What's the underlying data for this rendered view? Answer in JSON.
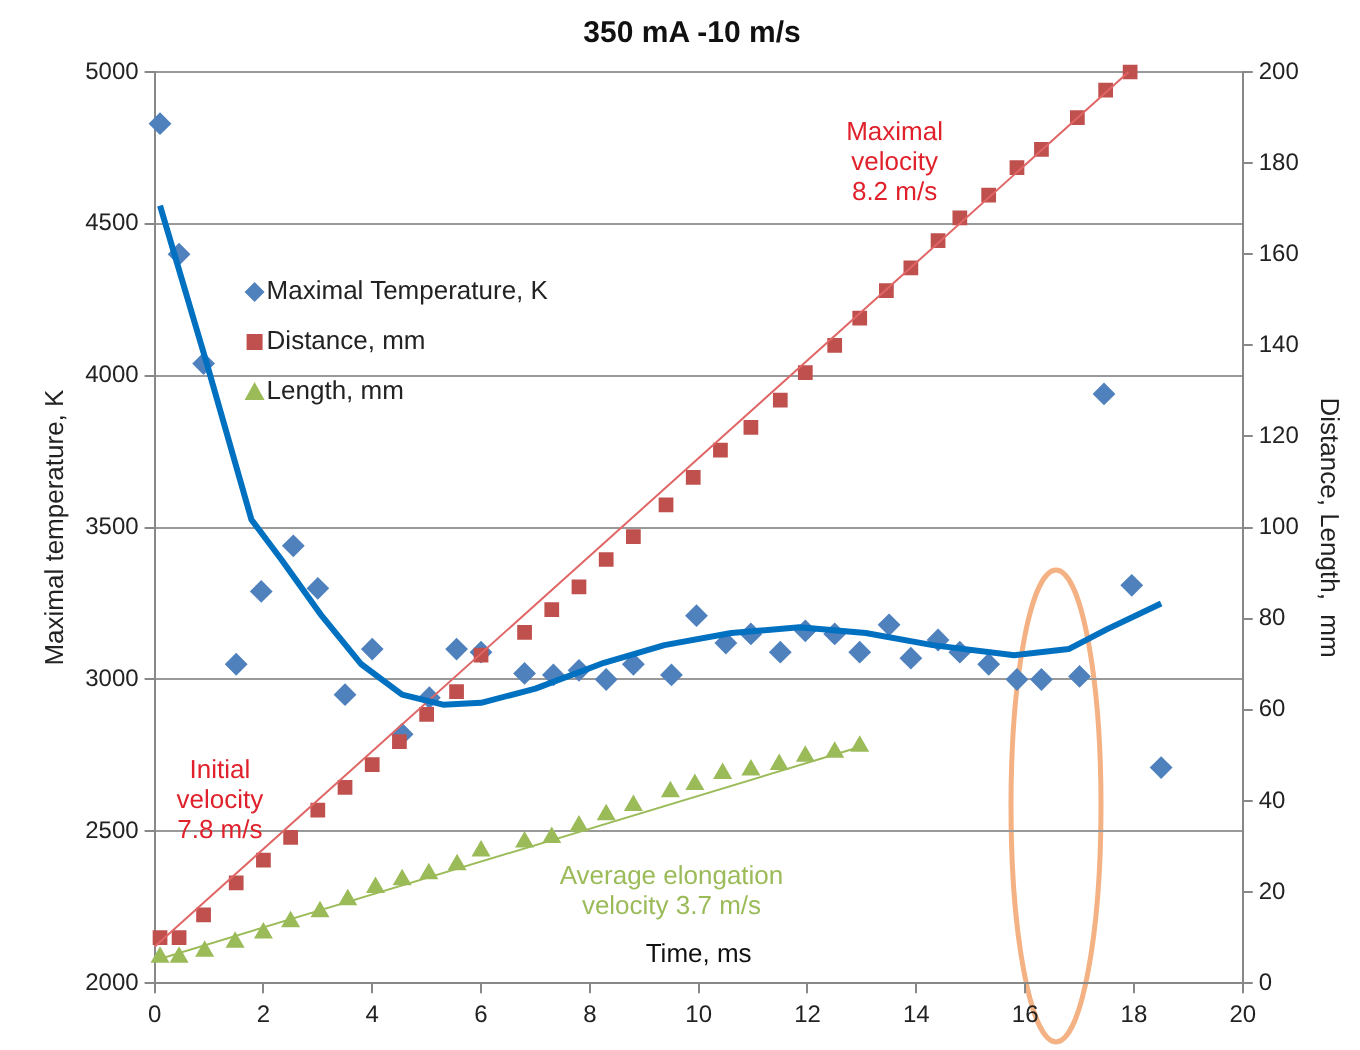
{
  "chart_data": {
    "type": "scatter",
    "title": "350 mA -10 m/s",
    "xlabel": "Time, ms",
    "ylabel": "Maximal temperature, K",
    "y2label": "Distance, Length,  mm",
    "xlim": [
      0,
      20
    ],
    "xticks": [
      0,
      2,
      4,
      6,
      8,
      10,
      12,
      14,
      16,
      18,
      20
    ],
    "ylim": [
      2000,
      5000
    ],
    "yticks": [
      2000,
      2500,
      3000,
      3500,
      4000,
      4500,
      5000
    ],
    "y2lim": [
      0,
      200
    ],
    "y2ticks": [
      0,
      20,
      40,
      60,
      80,
      100,
      120,
      140,
      160,
      180,
      200
    ],
    "grid": "y",
    "legend": "top left",
    "annotations": [
      "Maximal\nvelocity\n8.2 m/s",
      "Initial\nvelocity\n7.8 m/s",
      "Average elongation\nvelocity 3.7 m/s"
    ],
    "series": [
      {
        "name": "Maximal Temperature, K",
        "marker": "diamond",
        "color": "#4f81bd",
        "x": [
          0.1,
          0.45,
          0.9,
          1.5,
          1.96,
          2.55,
          3.0,
          3.5,
          4.0,
          4.55,
          5.05,
          5.55,
          6.0,
          6.8,
          7.33,
          7.8,
          8.3,
          8.8,
          9.5,
          9.96,
          10.5,
          10.96,
          11.5,
          11.96,
          12.5,
          12.96,
          13.5,
          13.9,
          14.4,
          14.8,
          15.33,
          15.85,
          16.3,
          17.0,
          17.45,
          17.96,
          18.5
        ],
        "values": [
          4830,
          4400,
          4040,
          3050,
          3290,
          3440,
          3300,
          2950,
          3100,
          2820,
          2940,
          3100,
          3090,
          3020,
          3015,
          3030,
          3000,
          3050,
          3015,
          3210,
          3120,
          3150,
          3090,
          3160,
          3150,
          3090,
          3180,
          3070,
          3130,
          3090,
          3050,
          3000,
          3000,
          3010,
          3940,
          3310,
          2710
        ]
      },
      {
        "name": "Distance, mm",
        "marker": "square",
        "axis": "y2",
        "color": "#c0504d",
        "x": [
          0.1,
          0.45,
          0.9,
          1.5,
          2.0,
          2.5,
          3.0,
          3.5,
          4.0,
          4.5,
          5.0,
          5.55,
          6.0,
          6.8,
          7.3,
          7.8,
          8.3,
          8.8,
          9.4,
          9.9,
          10.4,
          10.96,
          11.5,
          11.96,
          12.5,
          12.96,
          13.45,
          13.9,
          14.4,
          14.8,
          15.33,
          15.85,
          16.3,
          16.96,
          17.48,
          17.93
        ],
        "values": [
          10,
          10,
          15,
          22,
          27,
          32,
          38,
          43,
          48,
          53,
          59,
          64,
          72,
          77,
          82,
          87,
          93,
          98,
          105,
          111,
          117,
          122,
          128,
          134,
          140,
          146,
          152,
          157,
          163,
          168,
          173,
          179,
          183,
          190,
          196,
          200
        ]
      },
      {
        "name": "Length, mm",
        "marker": "triangle",
        "axis": "y2",
        "color": "#9bbb59",
        "x": [
          0.1,
          0.45,
          0.92,
          1.48,
          2.0,
          2.5,
          3.04,
          3.55,
          4.06,
          4.55,
          5.04,
          5.56,
          6.0,
          6.8,
          7.3,
          7.8,
          8.3,
          8.8,
          9.48,
          9.93,
          10.44,
          10.96,
          11.48,
          11.96,
          12.5,
          12.96
        ],
        "values": [
          5.7,
          5.7,
          7,
          9,
          11,
          13.5,
          15.7,
          18.3,
          21,
          22.7,
          24,
          26,
          29,
          31,
          32,
          34.5,
          37,
          39,
          42,
          43.6,
          46,
          46.8,
          48,
          49.8,
          50.7,
          52
        ]
      },
      {
        "type": "line",
        "marker": "none",
        "color": "#0070c0",
        "x": [
          0.1,
          0.96,
          1.78,
          2.33,
          3.07,
          3.8,
          4.55,
          5.3,
          6.0,
          7.0,
          8.26,
          9.37,
          10.6,
          11.85,
          13.07,
          14.3,
          15.8,
          16.8,
          17.5,
          18.5
        ],
        "values": [
          4560,
          4040,
          3526,
          3395,
          3210,
          3050,
          2950,
          2917,
          2923,
          2970,
          3055,
          3113,
          3153,
          3172,
          3153,
          3113,
          3080,
          3100,
          3165,
          3250
        ]
      },
      {
        "type": "line",
        "marker": "none",
        "axis": "y2",
        "color": "#e06666",
        "x": [
          0,
          17.9
        ],
        "values": [
          8,
          200
        ]
      },
      {
        "type": "line",
        "marker": "none",
        "axis": "y2",
        "color": "#9bbb59",
        "x": [
          0,
          13
        ],
        "values": [
          5,
          52
        ]
      }
    ]
  }
}
